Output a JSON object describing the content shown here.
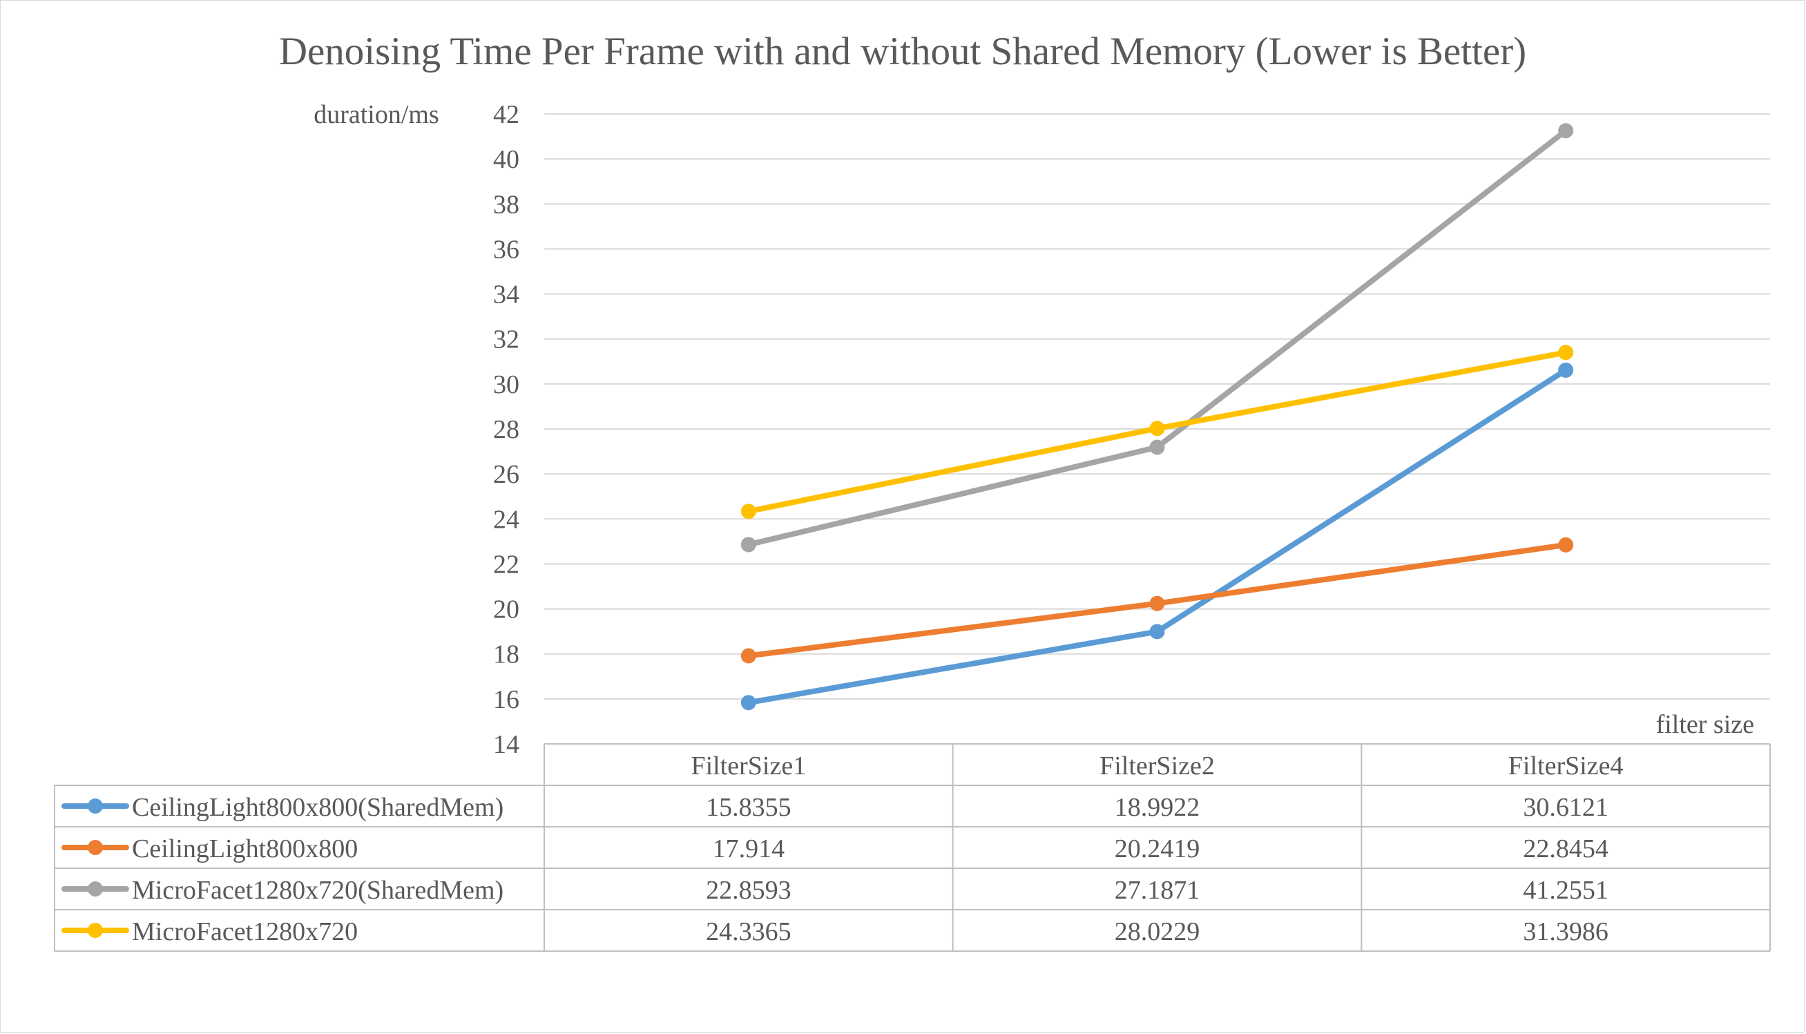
{
  "chart_data": {
    "type": "line",
    "title": "Denoising Time Per Frame with and without Shared Memory (Lower is Better)",
    "xlabel": "filter size",
    "ylabel": "duration/ms",
    "categories": [
      "FilterSize1",
      "FilterSize2",
      "FilterSize4"
    ],
    "ylim": [
      14,
      42
    ],
    "yticks": [
      "14",
      "16",
      "18",
      "20",
      "22",
      "24",
      "26",
      "28",
      "30",
      "32",
      "34",
      "36",
      "38",
      "40",
      "42"
    ],
    "grid": true,
    "legend": "data-table",
    "series": [
      {
        "name": "CeilingLight800x800(SharedMem)",
        "color": "#5b9bd5",
        "values": [
          15.8355,
          18.9922,
          30.6121
        ],
        "labels": [
          "15.8355",
          "18.9922",
          "30.6121"
        ]
      },
      {
        "name": "CeilingLight800x800",
        "color": "#ed7d31",
        "values": [
          17.914,
          20.2419,
          22.8454
        ],
        "labels": [
          "17.914",
          "20.2419",
          "22.8454"
        ]
      },
      {
        "name": "MicroFacet1280x720(SharedMem)",
        "color": "#a5a5a5",
        "values": [
          22.8593,
          27.1871,
          41.2551
        ],
        "labels": [
          "22.8593",
          "27.1871",
          "41.2551"
        ]
      },
      {
        "name": "MicroFacet1280x720",
        "color": "#ffc000",
        "values": [
          24.3365,
          28.0229,
          31.3986
        ],
        "labels": [
          "24.3365",
          "28.0229",
          "31.3986"
        ]
      }
    ]
  }
}
